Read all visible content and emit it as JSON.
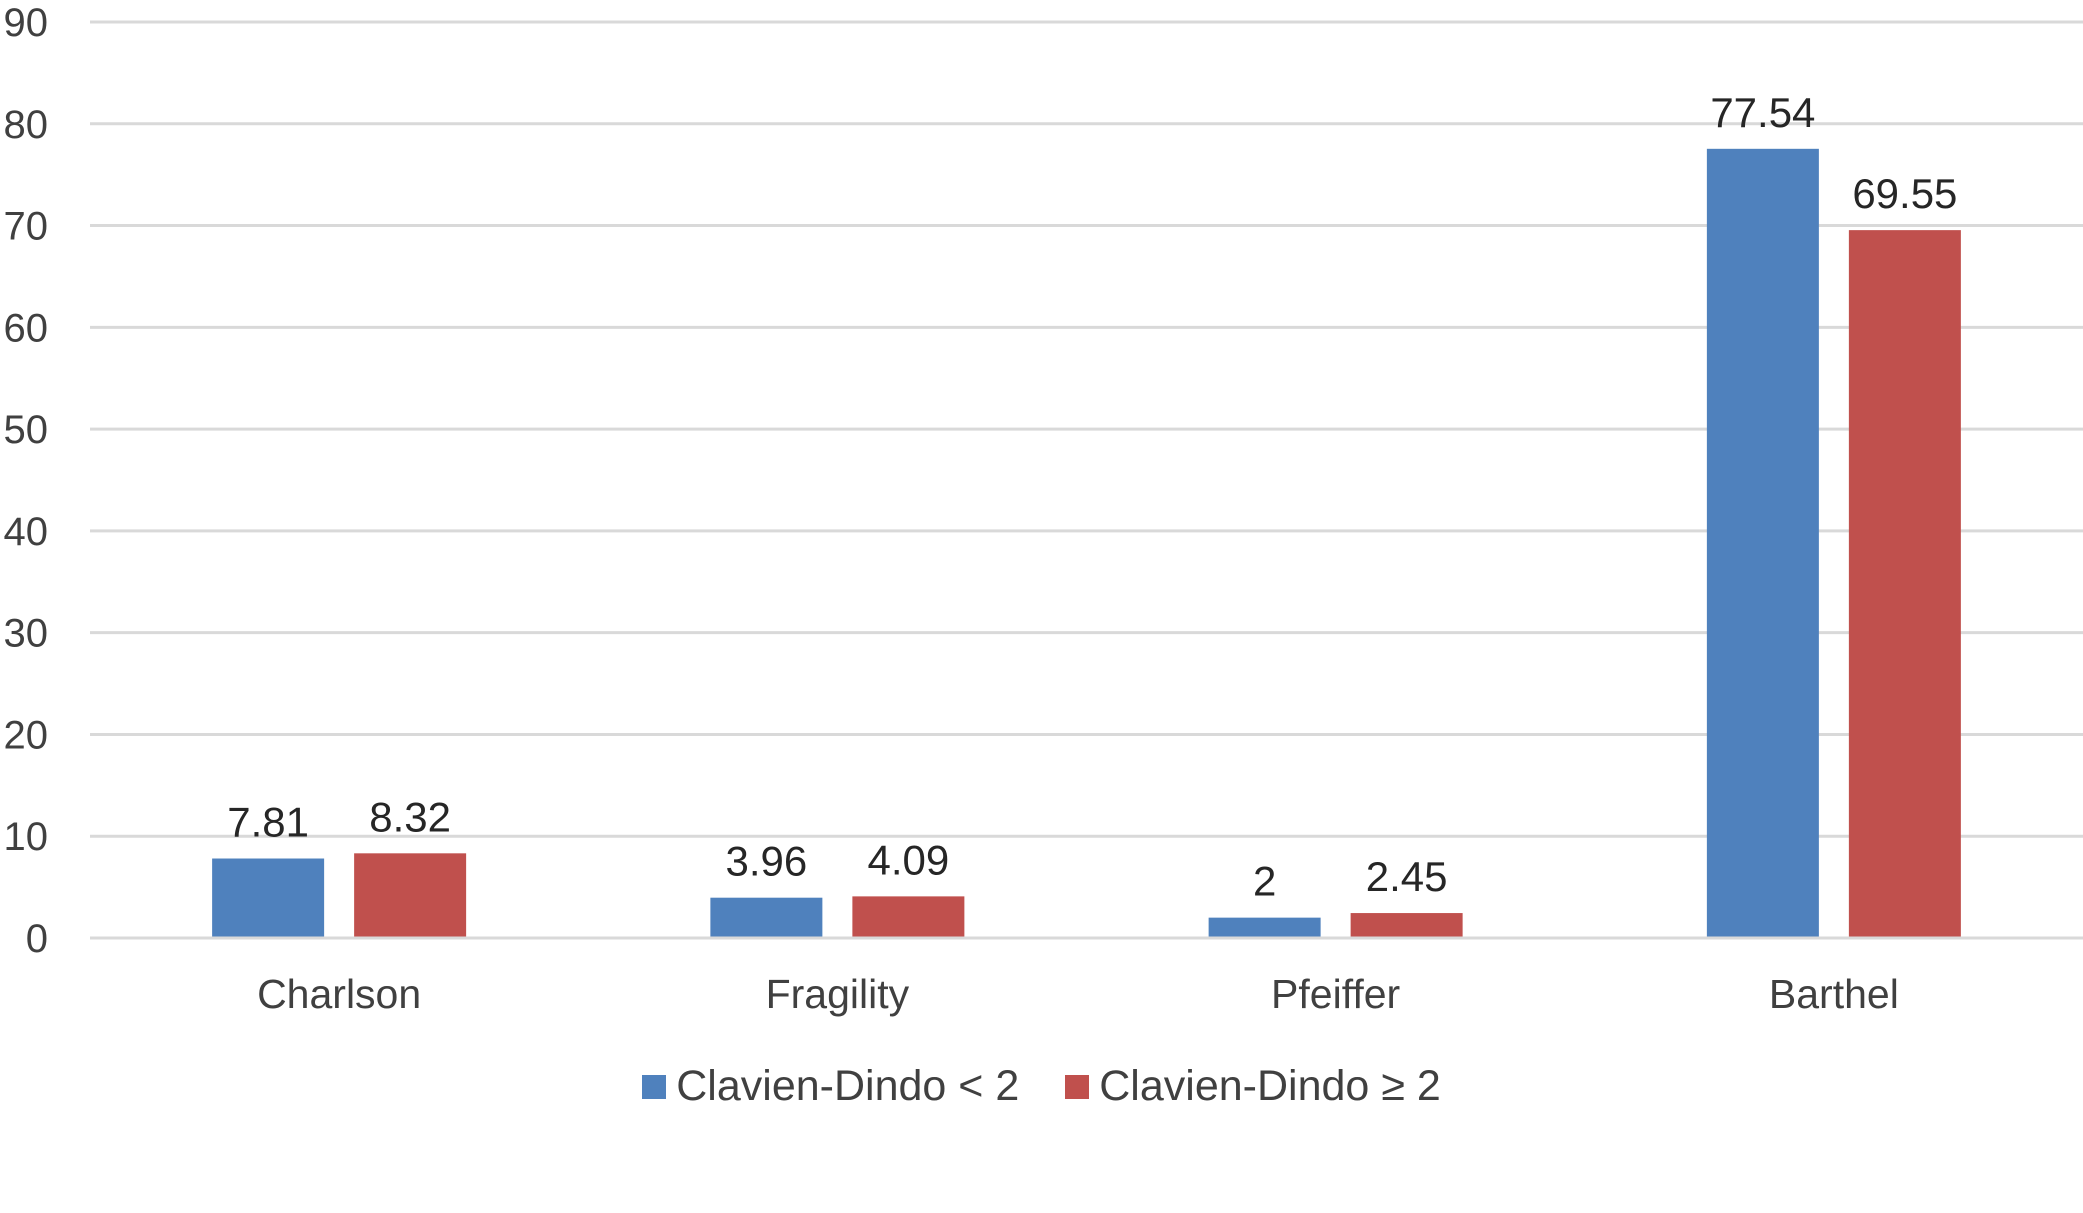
{
  "chart_data": {
    "type": "bar",
    "categories": [
      "Charlson",
      "Fragility",
      "Pfeiffer",
      "Barthel"
    ],
    "series": [
      {
        "name": "Clavien-Dindo < 2",
        "color": "#4f81bd",
        "values": [
          7.81,
          3.96,
          2,
          77.54
        ]
      },
      {
        "name": "Clavien-Dindo ≥ 2",
        "color": "#c0504d",
        "values": [
          8.32,
          4.09,
          2.45,
          69.55
        ]
      }
    ],
    "data_labels": [
      [
        "7.81",
        "3.96",
        "2",
        "77.54"
      ],
      [
        "8.32",
        "4.09",
        "2.45",
        "69.55"
      ]
    ],
    "yticks": [
      "0",
      "10",
      "20",
      "30",
      "40",
      "50",
      "60",
      "70",
      "80",
      "90"
    ],
    "ylim": [
      0,
      90
    ],
    "grid": true,
    "legend": "bottom"
  }
}
